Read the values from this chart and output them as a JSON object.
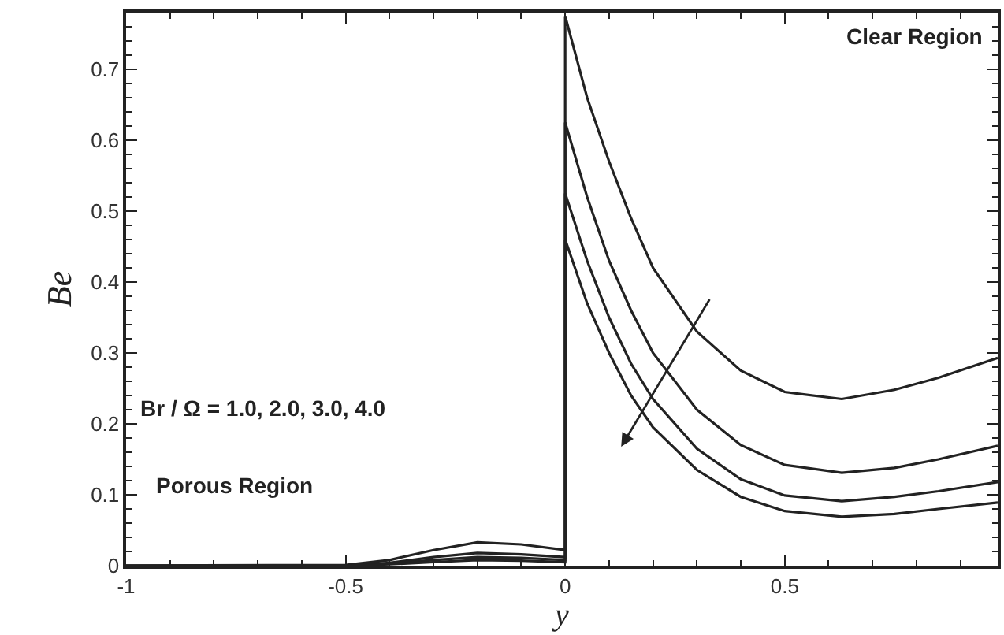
{
  "chart_data": {
    "type": "line",
    "xlabel": "y",
    "ylabel": "Be",
    "xlim": [
      -1,
      0.985
    ],
    "ylim": [
      0,
      0.78
    ],
    "xticks": [
      -1,
      -0.5,
      0,
      0.5
    ],
    "yticks": [
      0,
      0.1,
      0.2,
      0.3,
      0.4,
      0.5,
      0.6,
      0.7
    ],
    "marker": "none",
    "line_style": "solid",
    "annotations": [
      "Clear Region",
      "Br / Ω = 1.0, 2.0, 3.0, 4.0",
      "Porous Region"
    ],
    "series": [
      {
        "color": "#222222",
        "x": [
          -1,
          -0.5,
          -0.4,
          -0.3,
          -0.2,
          -0.1,
          0,
          0,
          0.05,
          0.1,
          0.15,
          0.2,
          0.3,
          0.4,
          0.5,
          0.63,
          0.75,
          0.85,
          0.985
        ],
        "values": [
          0,
          0.001,
          0.008,
          0.022,
          0.033,
          0.03,
          0.022,
          0.775,
          0.66,
          0.57,
          0.49,
          0.42,
          0.33,
          0.275,
          0.245,
          0.235,
          0.248,
          0.265,
          0.293
        ]
      },
      {
        "color": "#222222",
        "x": [
          -1,
          -0.5,
          -0.4,
          -0.3,
          -0.2,
          -0.1,
          0,
          0,
          0.05,
          0.1,
          0.15,
          0.2,
          0.3,
          0.4,
          0.5,
          0.63,
          0.75,
          0.85,
          0.985
        ],
        "values": [
          0,
          0,
          0.004,
          0.012,
          0.018,
          0.016,
          0.012,
          0.625,
          0.52,
          0.43,
          0.36,
          0.3,
          0.22,
          0.17,
          0.142,
          0.131,
          0.138,
          0.15,
          0.169
        ]
      },
      {
        "color": "#222222",
        "x": [
          -1,
          -0.5,
          -0.4,
          -0.3,
          -0.2,
          -0.1,
          0,
          0,
          0.05,
          0.1,
          0.15,
          0.2,
          0.3,
          0.4,
          0.5,
          0.63,
          0.75,
          0.85,
          0.985
        ],
        "values": [
          0,
          0,
          0.003,
          0.008,
          0.012,
          0.011,
          0.008,
          0.525,
          0.43,
          0.35,
          0.285,
          0.235,
          0.165,
          0.122,
          0.099,
          0.091,
          0.097,
          0.105,
          0.118
        ]
      },
      {
        "color": "#222222",
        "x": [
          -1,
          -0.5,
          -0.4,
          -0.3,
          -0.2,
          -0.1,
          0,
          0,
          0.05,
          0.1,
          0.15,
          0.2,
          0.3,
          0.4,
          0.5,
          0.63,
          0.75,
          0.85,
          0.985
        ],
        "values": [
          0,
          0,
          0.002,
          0.005,
          0.008,
          0.007,
          0.005,
          0.46,
          0.37,
          0.3,
          0.24,
          0.195,
          0.135,
          0.097,
          0.077,
          0.069,
          0.073,
          0.08,
          0.089
        ]
      }
    ]
  }
}
